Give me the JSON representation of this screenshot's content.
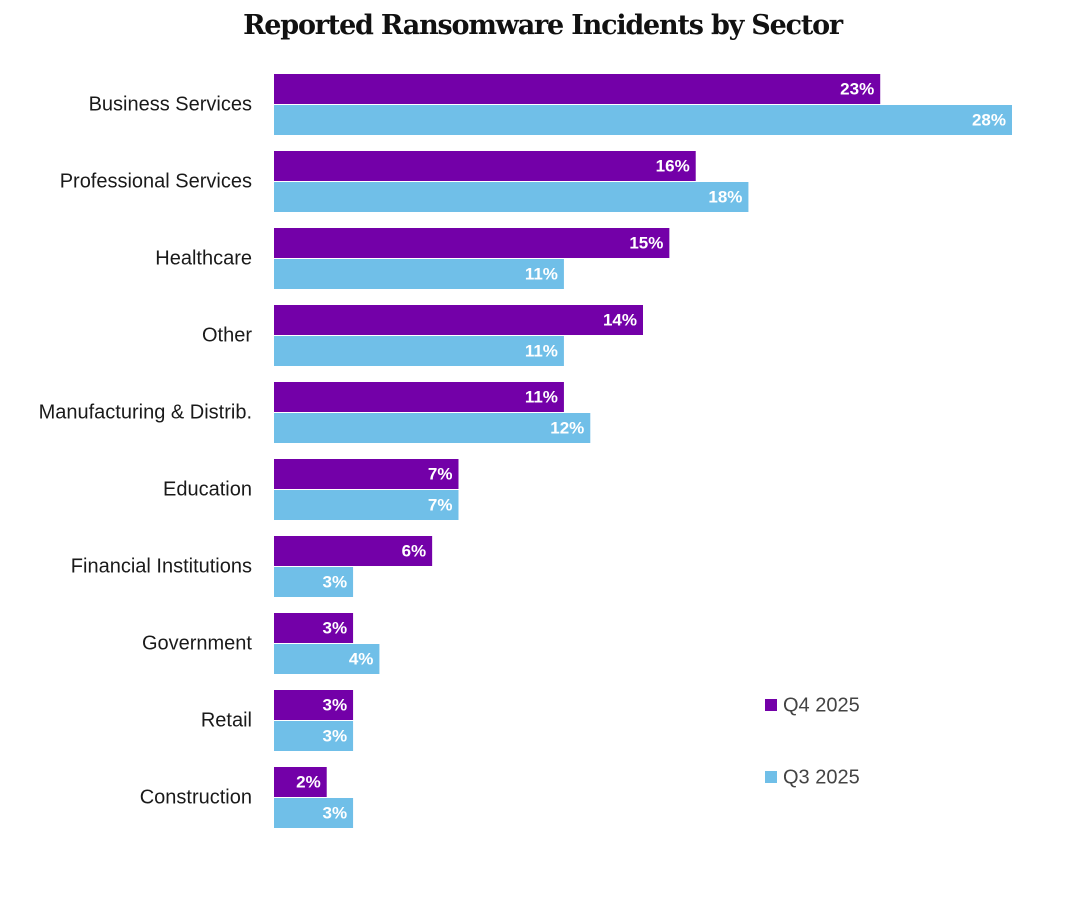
{
  "chart_data": {
    "type": "bar",
    "orientation": "horizontal",
    "title": "Reported Ransomware Incidents by Sector",
    "categories": [
      "Business Services",
      "Professional Services",
      "Healthcare",
      "Other",
      "Manufacturing & Distrib.",
      "Education",
      "Financial Institutions",
      "Government",
      "Retail",
      "Construction"
    ],
    "series": [
      {
        "name": "Q4 2025",
        "color": "#7300A8",
        "values": [
          23,
          16,
          15,
          14,
          11,
          7,
          6,
          3,
          3,
          2
        ],
        "labels": [
          "23%",
          "16%",
          "15%",
          "14%",
          "11%",
          "7%",
          "6%",
          "3%",
          "3%",
          "2%"
        ]
      },
      {
        "name": "Q3 2025",
        "color": "#70BFE8",
        "values": [
          28,
          18,
          11,
          11,
          12,
          7,
          3,
          4,
          3,
          3
        ],
        "labels": [
          "28%",
          "18%",
          "11%",
          "11%",
          "12%",
          "7%",
          "3%",
          "4%",
          "3%",
          "3%"
        ]
      }
    ],
    "xlim": [
      0,
      28
    ],
    "grid": false,
    "legend_position": "bottom-right"
  }
}
